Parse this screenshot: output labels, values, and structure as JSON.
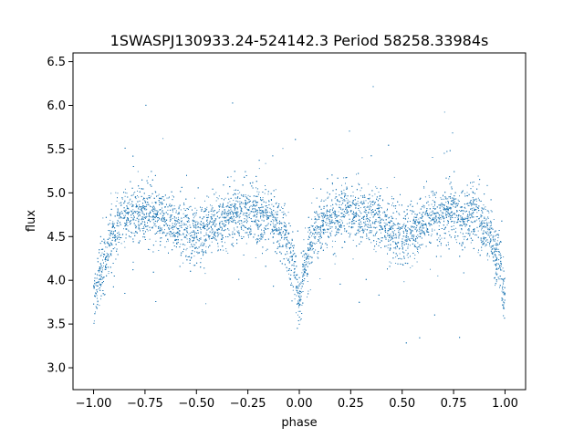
{
  "chart_data": {
    "type": "scatter",
    "title": "1SWASPJ130933.24-524142.3 Period 58258.33984s",
    "xlabel": "phase",
    "ylabel": "flux",
    "xlim": [
      -1.1,
      1.1
    ],
    "ylim": [
      2.75,
      6.6
    ],
    "x_ticks": [
      -1.0,
      -0.75,
      -0.5,
      -0.25,
      0.0,
      0.25,
      0.5,
      0.75,
      1.0
    ],
    "x_tick_labels": [
      "−1.00",
      "−0.75",
      "−0.50",
      "−0.25",
      "0.00",
      "0.25",
      "0.50",
      "0.75",
      "1.00"
    ],
    "y_ticks": [
      3.0,
      3.5,
      4.0,
      4.5,
      5.0,
      5.5,
      6.0,
      6.5
    ],
    "y_tick_labels": [
      "3.0",
      "3.5",
      "4.0",
      "4.5",
      "5.0",
      "5.5",
      "6.0",
      "6.5"
    ],
    "marker_color": "#1f77b4",
    "grid": false,
    "profile": {
      "phase": [
        -1.0,
        -0.95,
        -0.9,
        -0.85,
        -0.75,
        -0.65,
        -0.55,
        -0.5,
        -0.45,
        -0.35,
        -0.25,
        -0.15,
        -0.08,
        -0.03,
        0.0,
        0.03,
        0.08,
        0.15,
        0.25,
        0.35,
        0.45,
        0.5,
        0.55,
        0.65,
        0.75,
        0.85,
        0.92,
        0.97,
        1.0
      ],
      "flux": [
        3.82,
        4.2,
        4.55,
        4.72,
        4.78,
        4.72,
        4.58,
        4.5,
        4.58,
        4.72,
        4.78,
        4.72,
        4.55,
        4.2,
        3.82,
        4.2,
        4.55,
        4.72,
        4.78,
        4.72,
        4.58,
        4.5,
        4.58,
        4.72,
        4.78,
        4.72,
        4.55,
        4.2,
        3.82
      ]
    }
  }
}
